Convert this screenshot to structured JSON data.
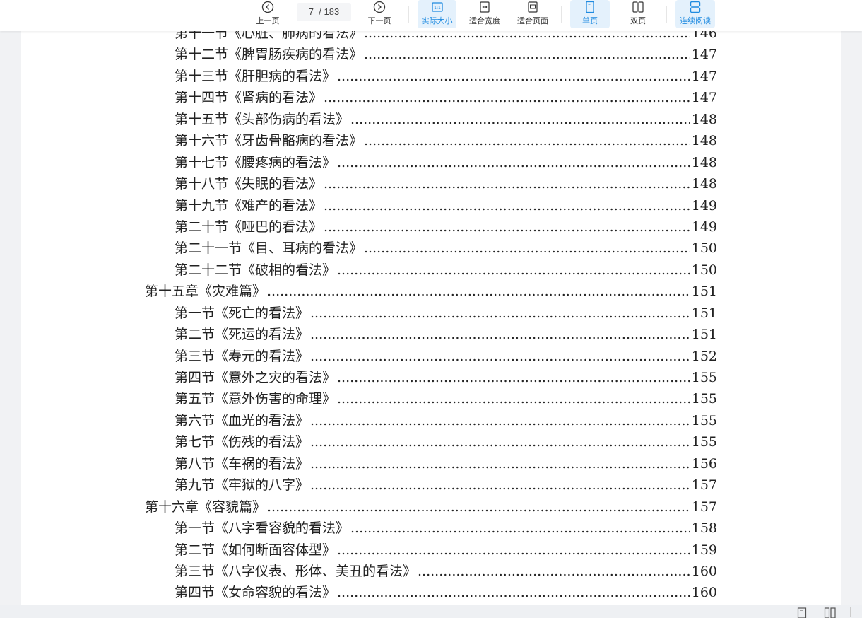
{
  "toolbar": {
    "prev": "上一页",
    "next": "下一页",
    "current_page": "7",
    "total_pages": "/ 183",
    "actual_size": "实际大小",
    "fit_width": "适合宽度",
    "fit_page": "适合页面",
    "single_page": "单页",
    "double_page": "双页",
    "continuous": "连续阅读",
    "accent": "#1f8be0"
  },
  "toc": [
    {
      "level": "sec",
      "title": "第十一节《心脏、肺病的看法》",
      "page": "146"
    },
    {
      "level": "sec",
      "title": "第十二节《脾胃肠疾病的看法》",
      "page": "147"
    },
    {
      "level": "sec",
      "title": "第十三节《肝胆病的看法》",
      "page": "147"
    },
    {
      "level": "sec",
      "title": "第十四节《肾病的看法》",
      "page": "147"
    },
    {
      "level": "sec",
      "title": "第十五节《头部伤病的看法》",
      "page": "148"
    },
    {
      "level": "sec",
      "title": "第十六节《牙齿骨骼病的看法》",
      "page": "148"
    },
    {
      "level": "sec",
      "title": "第十七节《腰疼病的看法》",
      "page": "148"
    },
    {
      "level": "sec",
      "title": "第十八节《失眠的看法》",
      "page": "148"
    },
    {
      "level": "sec",
      "title": "第十九节《难产的看法》",
      "page": "149"
    },
    {
      "level": "sec",
      "title": "第二十节《哑巴的看法》",
      "page": "149"
    },
    {
      "level": "sec",
      "title": "第二十一节《目、耳病的看法》",
      "page": "150"
    },
    {
      "level": "sec",
      "title": "第二十二节《破相的看法》",
      "page": "150"
    },
    {
      "level": "chap",
      "title": "第十五章《灾难篇》",
      "page": "151"
    },
    {
      "level": "sec",
      "title": "第一节《死亡的看法》",
      "page": "151"
    },
    {
      "level": "sec",
      "title": "第二节《死运的看法》",
      "page": "151"
    },
    {
      "level": "sec",
      "title": "第三节《寿元的看法》",
      "page": "152"
    },
    {
      "level": "sec",
      "title": "第四节《意外之灾的看法》",
      "page": "155"
    },
    {
      "level": "sec",
      "title": "第五节《意外伤害的命理》",
      "page": "155"
    },
    {
      "level": "sec",
      "title": "第六节《血光的看法》",
      "page": "155"
    },
    {
      "level": "sec",
      "title": "第七节《伤残的看法》",
      "page": "155"
    },
    {
      "level": "sec",
      "title": "第八节《车祸的看法》",
      "page": "156"
    },
    {
      "level": "sec",
      "title": "第九节《牢狱的八字》",
      "page": "157"
    },
    {
      "level": "chap",
      "title": "第十六章《容貌篇》",
      "page": "157"
    },
    {
      "level": "sec",
      "title": "第一节《八字看容貌的看法》",
      "page": "158"
    },
    {
      "level": "sec",
      "title": "第二节《如何断面容体型》",
      "page": "159"
    },
    {
      "level": "sec",
      "title": "第三节《八字仪表、形体、美丑的看法》",
      "page": "160"
    },
    {
      "level": "sec",
      "title": "第四节《女命容貌的看法》",
      "page": "160"
    }
  ]
}
